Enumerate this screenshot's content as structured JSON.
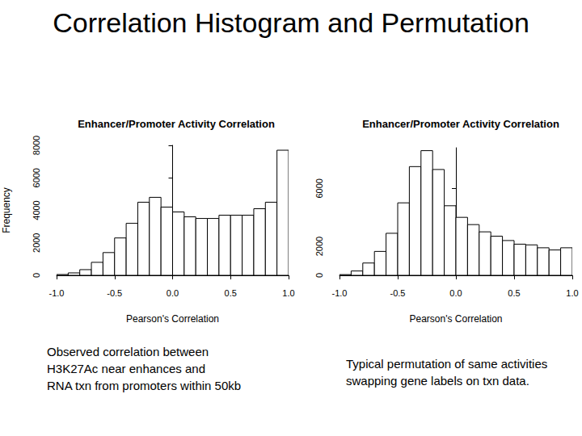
{
  "title": "Correlation Histogram and Permutation",
  "chart_data": [
    {
      "type": "histogram",
      "title": "Enhancer/Promoter Activity Correlation",
      "x_label": "Pearson's Correlation",
      "y_label": "Frequency",
      "caption": [
        "Observed correlation between",
        "H3K27Ac near enhances and",
        "RNA txn from promoters within 50kb"
      ],
      "bins": [
        -1.0,
        -0.9,
        -0.8,
        -0.7,
        -0.6,
        -0.5,
        -0.4,
        -0.3,
        -0.2,
        -0.1,
        0.0,
        0.1,
        0.2,
        0.3,
        0.4,
        0.5,
        0.6,
        0.7,
        0.8,
        0.9,
        1.0
      ],
      "values": [
        50,
        150,
        350,
        800,
        1400,
        2300,
        3200,
        4500,
        4800,
        4200,
        3900,
        3600,
        3500,
        3500,
        3700,
        3700,
        3700,
        4100,
        4500,
        7700
      ],
      "color": "#ffffff",
      "xlim": [
        -1,
        1
      ],
      "xticks": [
        {
          "value": -1,
          "label": "-1.0"
        },
        {
          "value": -0.5,
          "label": "-0.5"
        },
        {
          "value": 0,
          "label": "0.0"
        },
        0.5,
        {
          "value": 1,
          "label": "1.0"
        }
      ],
      "ylim": [
        0,
        8000
      ],
      "yticks": [
        0,
        2000,
        4000,
        6000,
        8000
      ],
      "grid": false
    },
    {
      "type": "histogram",
      "title": "Enhancer/Promoter Activity Correlation",
      "x_label": "Pearson's Correlation",
      "caption": [
        "Typical permutation of same activities",
        "swapping gene labels on txn data."
      ],
      "bins": [
        -1.0,
        -0.9,
        -0.8,
        -0.7,
        -0.6,
        -0.5,
        -0.4,
        -0.3,
        -0.2,
        -0.1,
        0.0,
        0.1,
        0.2,
        0.3,
        0.4,
        0.5,
        0.6,
        0.7,
        0.8,
        0.9,
        1.0
      ],
      "values": [
        50,
        300,
        850,
        1650,
        2900,
        5000,
        7500,
        8600,
        7300,
        4800,
        4000,
        3500,
        3000,
        2700,
        2400,
        2150,
        2100,
        1900,
        1750,
        1900
      ],
      "color": "#ffffff",
      "xlim": [
        -1,
        1
      ],
      "xticks": [
        {
          "value": -1,
          "label": "-1.0"
        },
        {
          "value": -0.5,
          "label": "-0.5"
        },
        {
          "value": 0,
          "label": "0.0"
        },
        0.5,
        {
          "value": 1,
          "label": "1.0"
        }
      ],
      "ylim": [
        0,
        8800
      ],
      "yticks": [
        0,
        2000,
        6000
      ],
      "grid": false
    }
  ]
}
